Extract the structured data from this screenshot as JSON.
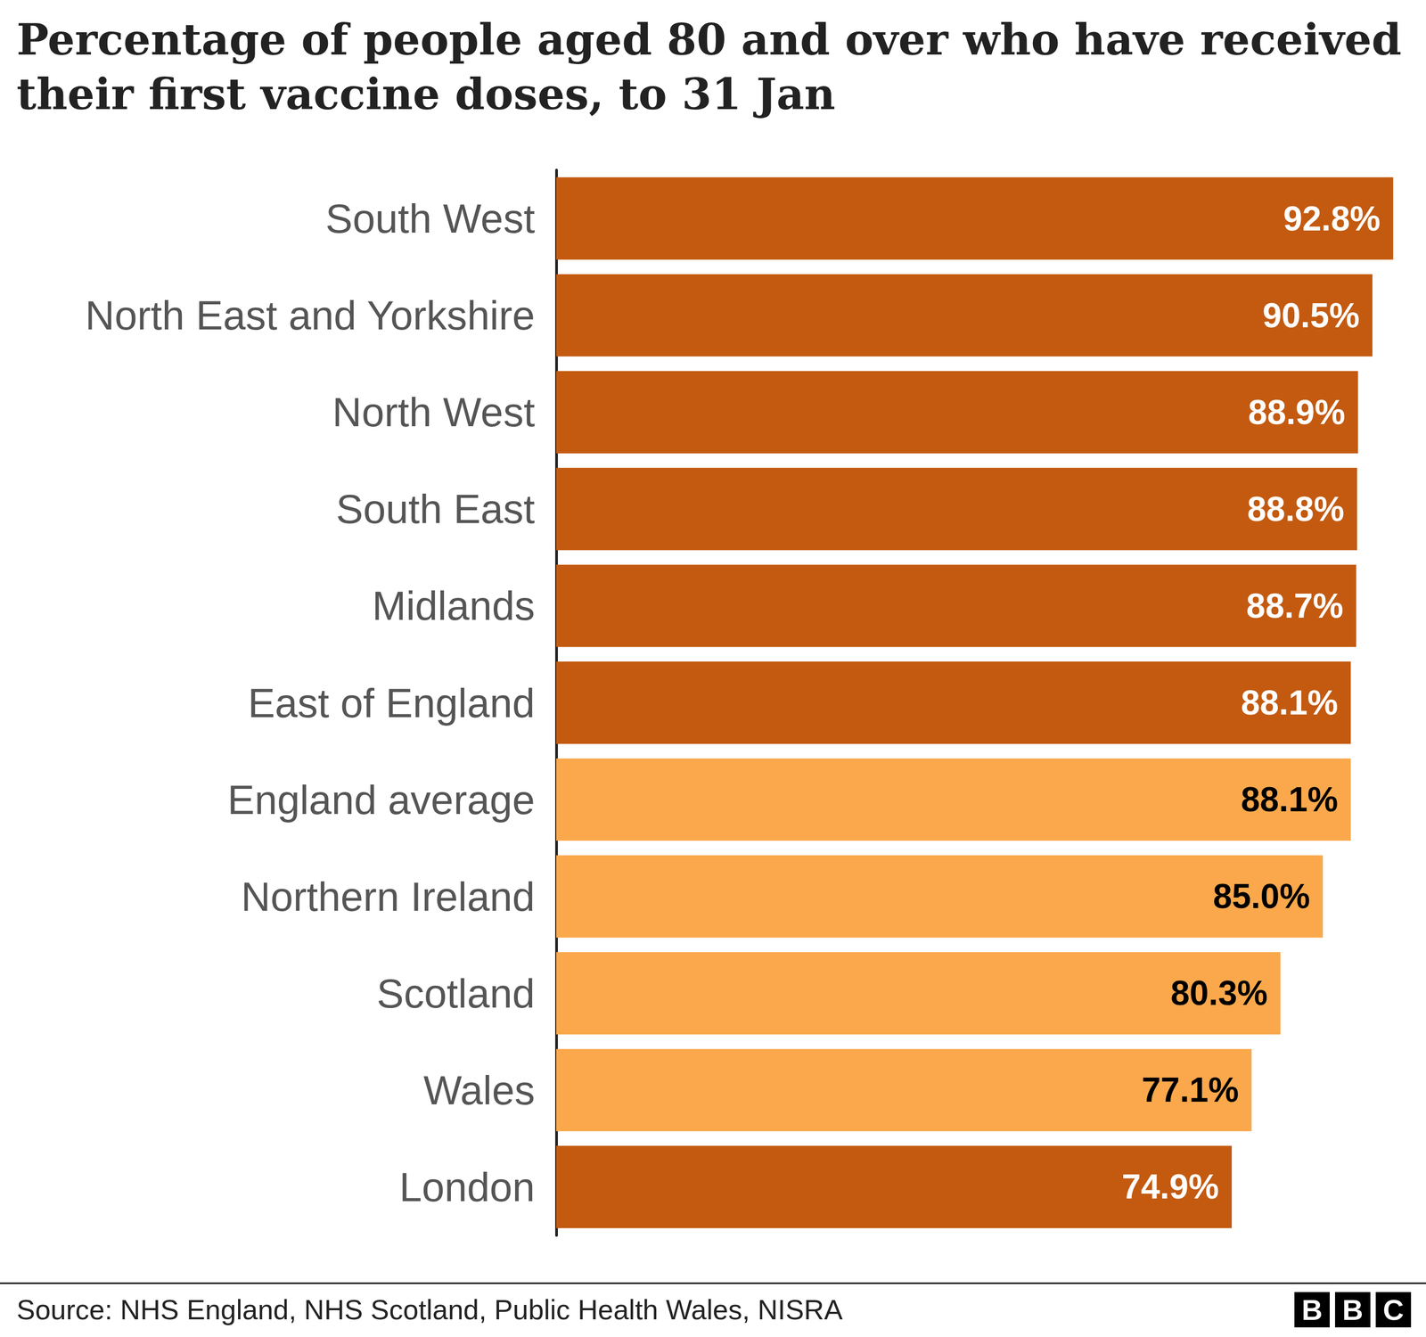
{
  "chart_data": {
    "type": "bar",
    "orientation": "horizontal",
    "title": "Percentage of people aged 80 and over who have received their first vaccine doses, to 31 Jan",
    "categories": [
      "South West",
      "North East and Yorkshire",
      "North West",
      "South East",
      "Midlands",
      "East of England",
      "England average",
      "Northern Ireland",
      "Scotland",
      "Wales",
      "London"
    ],
    "values": [
      92.8,
      90.5,
      88.9,
      88.8,
      88.7,
      88.1,
      88.1,
      85.0,
      80.3,
      77.1,
      74.9
    ],
    "value_labels": [
      "92.8%",
      "90.5%",
      "88.9%",
      "88.8%",
      "88.7%",
      "88.1%",
      "88.1%",
      "85.0%",
      "80.3%",
      "77.1%",
      "74.9%"
    ],
    "colors": [
      "#c35a10",
      "#c35a10",
      "#c35a10",
      "#c35a10",
      "#c35a10",
      "#c35a10",
      "#faa84b",
      "#faa84b",
      "#faa84b",
      "#faa84b",
      "#c35a10"
    ],
    "xlim": [
      0,
      93
    ],
    "tick_labels": "y",
    "grid": false,
    "data_labels": true,
    "source": "Source: NHS England, NHS Scotland, Public Health Wales, NISRA",
    "logo": "BBC"
  }
}
